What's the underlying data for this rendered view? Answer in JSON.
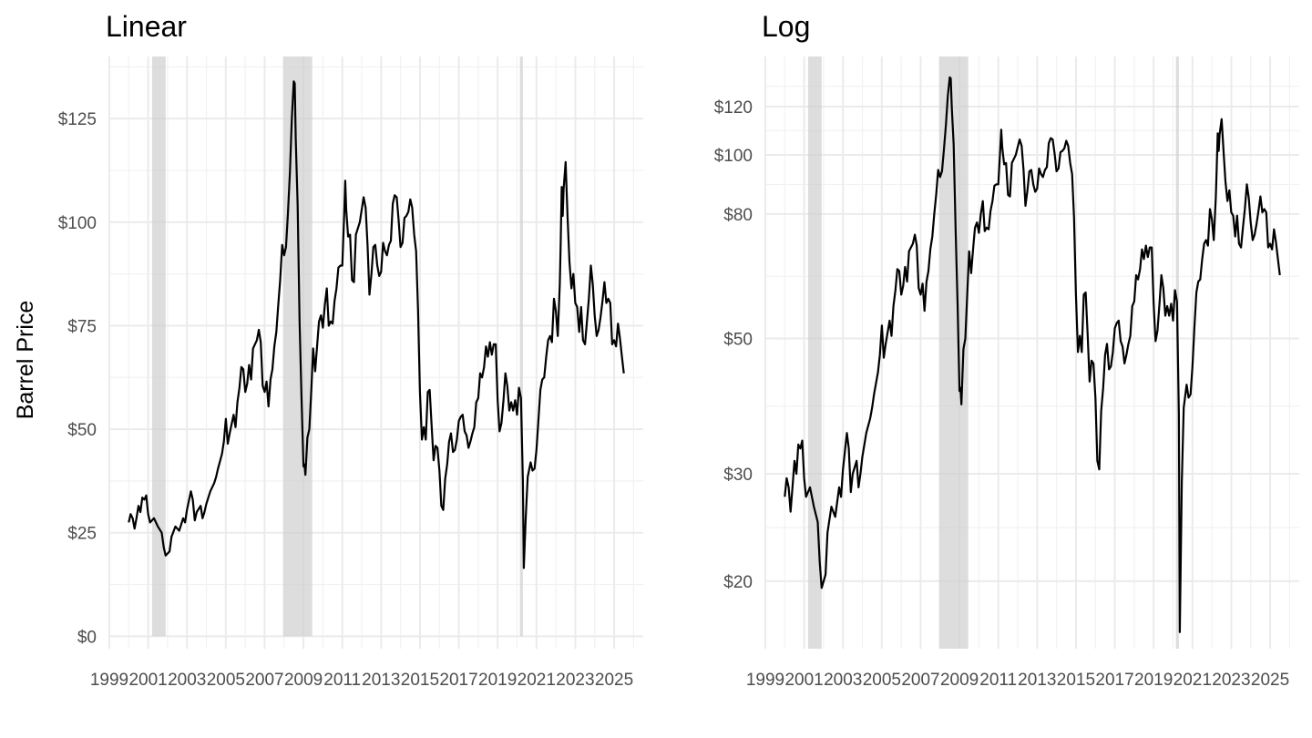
{
  "chart_data": [
    {
      "type": "line",
      "title": "Linear",
      "ylabel": "Barrel Price",
      "scale": "linear",
      "xlim": [
        1999.0,
        2026.5
      ],
      "ylim": [
        -3,
        140
      ],
      "x_ticks": [
        1999,
        2001,
        2003,
        2005,
        2007,
        2009,
        2011,
        2013,
        2015,
        2017,
        2019,
        2021,
        2023,
        2025
      ],
      "x_tick_labels": [
        "1999",
        "2001",
        "2003",
        "2005",
        "2007",
        "2009",
        "2011",
        "2013",
        "2015",
        "2017",
        "2019",
        "2021",
        "2023",
        "2025"
      ],
      "y_ticks": [
        0,
        25,
        50,
        75,
        100,
        125
      ],
      "y_tick_labels": [
        "$0",
        "$25",
        "$50",
        "$75",
        "$100",
        "$125"
      ],
      "grid": true,
      "shaded_periods": [
        [
          2001.2,
          2001.9
        ],
        [
          2007.95,
          2009.45
        ],
        [
          2020.15,
          2020.3
        ]
      ],
      "series": [
        {
          "color": "#000000",
          "points": [
            [
              2000.0,
              27.5
            ],
            [
              2000.1,
              29.5
            ],
            [
              2000.2,
              28.5
            ],
            [
              2000.3,
              26.0
            ],
            [
              2000.4,
              28.5
            ],
            [
              2000.5,
              31.5
            ],
            [
              2000.6,
              30.0
            ],
            [
              2000.7,
              33.5
            ],
            [
              2000.8,
              33.0
            ],
            [
              2000.9,
              34.0
            ],
            [
              2001.0,
              29.5
            ],
            [
              2001.1,
              27.5
            ],
            [
              2001.3,
              28.5
            ],
            [
              2001.5,
              26.5
            ],
            [
              2001.7,
              25.0
            ],
            [
              2001.8,
              21.5
            ],
            [
              2001.9,
              19.5
            ],
            [
              2002.1,
              20.5
            ],
            [
              2002.2,
              24.0
            ],
            [
              2002.4,
              26.5
            ],
            [
              2002.6,
              25.5
            ],
            [
              2002.8,
              28.5
            ],
            [
              2002.9,
              27.5
            ],
            [
              2003.0,
              30.5
            ],
            [
              2003.2,
              35.0
            ],
            [
              2003.3,
              33.0
            ],
            [
              2003.4,
              28.0
            ],
            [
              2003.5,
              30.0
            ],
            [
              2003.7,
              31.5
            ],
            [
              2003.8,
              28.5
            ],
            [
              2003.9,
              30.0
            ],
            [
              2004.0,
              32.0
            ],
            [
              2004.2,
              35.0
            ],
            [
              2004.4,
              37.0
            ],
            [
              2004.5,
              38.5
            ],
            [
              2004.6,
              40.5
            ],
            [
              2004.8,
              44.0
            ],
            [
              2004.9,
              47.0
            ],
            [
              2005.0,
              52.5
            ],
            [
              2005.1,
              46.5
            ],
            [
              2005.2,
              49.0
            ],
            [
              2005.4,
              53.5
            ],
            [
              2005.5,
              50.5
            ],
            [
              2005.6,
              56.5
            ],
            [
              2005.7,
              60.0
            ],
            [
              2005.8,
              65.0
            ],
            [
              2005.9,
              64.5
            ],
            [
              2006.0,
              59.0
            ],
            [
              2006.1,
              61.0
            ],
            [
              2006.2,
              65.5
            ],
            [
              2006.3,
              62.0
            ],
            [
              2006.4,
              69.5
            ],
            [
              2006.6,
              71.5
            ],
            [
              2006.7,
              74.0
            ],
            [
              2006.8,
              71.0
            ],
            [
              2006.9,
              60.5
            ],
            [
              2007.0,
              59.0
            ],
            [
              2007.1,
              61.5
            ],
            [
              2007.2,
              55.5
            ],
            [
              2007.3,
              62.0
            ],
            [
              2007.4,
              64.5
            ],
            [
              2007.5,
              70.0
            ],
            [
              2007.6,
              73.5
            ],
            [
              2007.7,
              80.0
            ],
            [
              2007.8,
              86.0
            ],
            [
              2007.9,
              94.5
            ],
            [
              2008.0,
              92.0
            ],
            [
              2008.1,
              94.0
            ],
            [
              2008.2,
              102.0
            ],
            [
              2008.3,
              112.0
            ],
            [
              2008.4,
              125.0
            ],
            [
              2008.5,
              134.0
            ],
            [
              2008.55,
              133.5
            ],
            [
              2008.6,
              120.0
            ],
            [
              2008.7,
              104.0
            ],
            [
              2008.8,
              76.0
            ],
            [
              2008.9,
              57.0
            ],
            [
              2009.0,
              41.0
            ],
            [
              2009.05,
              41.5
            ],
            [
              2009.1,
              39.0
            ],
            [
              2009.2,
              48.0
            ],
            [
              2009.3,
              50.0
            ],
            [
              2009.4,
              59.0
            ],
            [
              2009.5,
              69.5
            ],
            [
              2009.6,
              64.0
            ],
            [
              2009.7,
              70.0
            ],
            [
              2009.8,
              76.0
            ],
            [
              2009.9,
              77.5
            ],
            [
              2010.0,
              74.5
            ],
            [
              2010.1,
              80.0
            ],
            [
              2010.2,
              84.0
            ],
            [
              2010.3,
              75.0
            ],
            [
              2010.4,
              76.0
            ],
            [
              2010.5,
              75.5
            ],
            [
              2010.6,
              81.0
            ],
            [
              2010.7,
              84.0
            ],
            [
              2010.8,
              89.0
            ],
            [
              2010.9,
              89.5
            ],
            [
              2011.0,
              89.5
            ],
            [
              2011.1,
              102.0
            ],
            [
              2011.15,
              110.0
            ],
            [
              2011.2,
              103.0
            ],
            [
              2011.3,
              96.5
            ],
            [
              2011.4,
              97.0
            ],
            [
              2011.5,
              86.0
            ],
            [
              2011.6,
              85.5
            ],
            [
              2011.7,
              97.0
            ],
            [
              2011.8,
              98.5
            ],
            [
              2011.9,
              100.0
            ],
            [
              2012.0,
              103.0
            ],
            [
              2012.1,
              106.0
            ],
            [
              2012.2,
              103.5
            ],
            [
              2012.3,
              94.5
            ],
            [
              2012.4,
              82.5
            ],
            [
              2012.5,
              87.5
            ],
            [
              2012.6,
              94.0
            ],
            [
              2012.7,
              94.5
            ],
            [
              2012.8,
              89.5
            ],
            [
              2012.9,
              87.0
            ],
            [
              2013.0,
              88.0
            ],
            [
              2013.1,
              95.0
            ],
            [
              2013.2,
              93.0
            ],
            [
              2013.3,
              92.0
            ],
            [
              2013.4,
              94.5
            ],
            [
              2013.5,
              95.5
            ],
            [
              2013.6,
              104.5
            ],
            [
              2013.7,
              106.5
            ],
            [
              2013.8,
              106.0
            ],
            [
              2013.9,
              100.5
            ],
            [
              2014.0,
              94.0
            ],
            [
              2014.1,
              95.0
            ],
            [
              2014.2,
              101.0
            ],
            [
              2014.3,
              101.5
            ],
            [
              2014.4,
              102.5
            ],
            [
              2014.5,
              105.5
            ],
            [
              2014.6,
              103.5
            ],
            [
              2014.7,
              97.0
            ],
            [
              2014.8,
              93.0
            ],
            [
              2014.9,
              79.0
            ],
            [
              2015.0,
              59.0
            ],
            [
              2015.1,
              47.5
            ],
            [
              2015.2,
              50.5
            ],
            [
              2015.3,
              47.5
            ],
            [
              2015.4,
              59.0
            ],
            [
              2015.5,
              59.5
            ],
            [
              2015.6,
              51.0
            ],
            [
              2015.7,
              42.5
            ],
            [
              2015.8,
              46.0
            ],
            [
              2015.9,
              45.5
            ],
            [
              2016.0,
              40.0
            ],
            [
              2016.1,
              31.5
            ],
            [
              2016.2,
              30.5
            ],
            [
              2016.3,
              38.0
            ],
            [
              2016.4,
              41.5
            ],
            [
              2016.5,
              47.0
            ],
            [
              2016.6,
              49.0
            ],
            [
              2016.7,
              44.5
            ],
            [
              2016.8,
              45.0
            ],
            [
              2016.9,
              47.5
            ],
            [
              2017.0,
              52.0
            ],
            [
              2017.1,
              53.0
            ],
            [
              2017.2,
              53.5
            ],
            [
              2017.3,
              49.5
            ],
            [
              2017.4,
              48.5
            ],
            [
              2017.5,
              45.5
            ],
            [
              2017.6,
              47.0
            ],
            [
              2017.7,
              49.0
            ],
            [
              2017.8,
              50.5
            ],
            [
              2017.9,
              56.5
            ],
            [
              2018.0,
              57.5
            ],
            [
              2018.1,
              63.5
            ],
            [
              2018.2,
              62.5
            ],
            [
              2018.3,
              65.0
            ],
            [
              2018.4,
              70.0
            ],
            [
              2018.5,
              67.5
            ],
            [
              2018.6,
              71.0
            ],
            [
              2018.7,
              68.0
            ],
            [
              2018.8,
              70.5
            ],
            [
              2018.9,
              70.5
            ],
            [
              2019.0,
              57.0
            ],
            [
              2019.1,
              49.5
            ],
            [
              2019.2,
              51.5
            ],
            [
              2019.3,
              57.0
            ],
            [
              2019.4,
              63.5
            ],
            [
              2019.5,
              60.5
            ],
            [
              2019.6,
              54.5
            ],
            [
              2019.7,
              56.5
            ],
            [
              2019.8,
              54.5
            ],
            [
              2019.9,
              57.0
            ],
            [
              2020.0,
              53.5
            ],
            [
              2020.1,
              60.0
            ],
            [
              2020.2,
              57.5
            ],
            [
              2020.3,
              37.5
            ],
            [
              2020.35,
              16.5
            ],
            [
              2020.45,
              29.0
            ],
            [
              2020.55,
              38.5
            ],
            [
              2020.7,
              42.0
            ],
            [
              2020.8,
              40.0
            ],
            [
              2020.9,
              40.5
            ],
            [
              2021.0,
              45.0
            ],
            [
              2021.1,
              52.0
            ],
            [
              2021.2,
              59.5
            ],
            [
              2021.3,
              62.0
            ],
            [
              2021.4,
              62.5
            ],
            [
              2021.5,
              67.5
            ],
            [
              2021.6,
              71.5
            ],
            [
              2021.7,
              72.5
            ],
            [
              2021.8,
              71.0
            ],
            [
              2021.9,
              81.5
            ],
            [
              2022.0,
              78.5
            ],
            [
              2022.1,
              72.5
            ],
            [
              2022.2,
              85.0
            ],
            [
              2022.25,
              95.0
            ],
            [
              2022.3,
              108.5
            ],
            [
              2022.35,
              101.5
            ],
            [
              2022.4,
              108.0
            ],
            [
              2022.5,
              114.5
            ],
            [
              2022.6,
              101.5
            ],
            [
              2022.7,
              90.5
            ],
            [
              2022.8,
              84.0
            ],
            [
              2022.9,
              87.5
            ],
            [
              2023.0,
              80.5
            ],
            [
              2023.1,
              79.5
            ],
            [
              2023.2,
              73.5
            ],
            [
              2023.3,
              79.5
            ],
            [
              2023.4,
              71.5
            ],
            [
              2023.5,
              70.5
            ],
            [
              2023.6,
              76.0
            ],
            [
              2023.7,
              81.5
            ],
            [
              2023.8,
              89.5
            ],
            [
              2023.9,
              85.0
            ],
            [
              2024.0,
              77.5
            ],
            [
              2024.1,
              72.5
            ],
            [
              2024.2,
              74.0
            ],
            [
              2024.3,
              77.0
            ],
            [
              2024.4,
              81.0
            ],
            [
              2024.5,
              85.5
            ],
            [
              2024.6,
              80.5
            ],
            [
              2024.7,
              81.5
            ],
            [
              2024.8,
              80.5
            ],
            [
              2024.9,
              70.5
            ],
            [
              2025.0,
              71.5
            ],
            [
              2025.1,
              70.0
            ],
            [
              2025.2,
              75.5
            ],
            [
              2025.3,
              72.0
            ],
            [
              2025.4,
              67.5
            ],
            [
              2025.5,
              63.5
            ]
          ]
        }
      ]
    },
    {
      "type": "line",
      "title": "Log",
      "ylabel": "",
      "scale": "log",
      "xlim": [
        1999.0,
        2026.5
      ],
      "ylim": [
        15.5,
        145
      ],
      "x_ticks": [
        1999,
        2001,
        2003,
        2005,
        2007,
        2009,
        2011,
        2013,
        2015,
        2017,
        2019,
        2021,
        2023,
        2025
      ],
      "x_tick_labels": [
        "1999",
        "2001",
        "2003",
        "2005",
        "2007",
        "2009",
        "2011",
        "2013",
        "2015",
        "2017",
        "2019",
        "2021",
        "2023",
        "2025"
      ],
      "y_ticks": [
        20,
        30,
        50,
        80,
        100,
        120
      ],
      "y_tick_labels": [
        "$20",
        "$30",
        "$50",
        "$80",
        "$100",
        "$120"
      ],
      "grid": true,
      "shaded_periods": [
        [
          2001.2,
          2001.9
        ],
        [
          2007.95,
          2009.45
        ],
        [
          2020.15,
          2020.3
        ]
      ],
      "series": [
        {
          "color": "#000000",
          "points": "same as Linear panel"
        }
      ]
    }
  ]
}
